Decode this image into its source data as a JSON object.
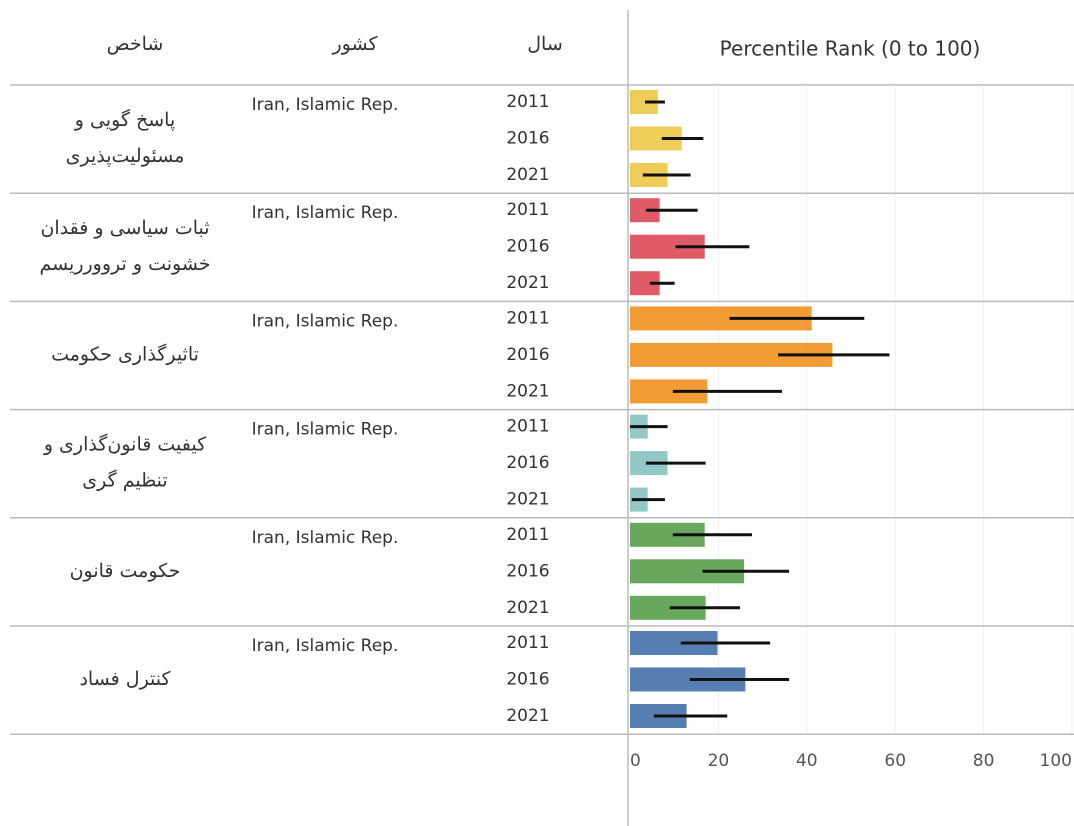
{
  "chart_data": {
    "type": "bar",
    "headers": {
      "indicator": "شاخص",
      "country": "کشور",
      "year": "سال",
      "value_axis": "Percentile Rank (0 to 100)"
    },
    "xlim": [
      0,
      100
    ],
    "xticks": [
      0,
      20,
      40,
      60,
      80,
      100
    ],
    "groups": [
      {
        "label_lines": [
          "پاسخ گویی و",
          "مسئولیت‌پذیری"
        ],
        "country": "Iran, Islamic Rep.",
        "color": "#ebc846",
        "categories": [
          "2011",
          "2016",
          "2021"
        ],
        "values": [
          6.3,
          11.7,
          8.5
        ],
        "lower": [
          3.4,
          7.2,
          2.9
        ],
        "upper": [
          7.9,
          16.6,
          13.7
        ]
      },
      {
        "label_lines": [
          "ثبات سیاسی و فقدان",
          "خشونت و تروورریسم"
        ],
        "country": "Iran, Islamic Rep.",
        "color": "#dc4a55",
        "categories": [
          "2011",
          "2016",
          "2021"
        ],
        "values": [
          6.7,
          16.9,
          6.7
        ],
        "lower": [
          3.6,
          10.3,
          4.5
        ],
        "upper": [
          15.3,
          27,
          10.1
        ]
      },
      {
        "label_lines": [
          "تاثیرگذاری حکومت"
        ],
        "country": "Iran, Islamic Rep.",
        "color": "#f2901f",
        "categories": [
          "2011",
          "2016",
          "2021"
        ],
        "values": [
          41.1,
          45.8,
          17.5
        ],
        "lower": [
          22.5,
          33.5,
          9.7
        ],
        "upper": [
          53,
          58.7,
          34.4
        ]
      },
      {
        "label_lines": [
          "کیفیت قانون‌گذاری و",
          "تنظیم گری"
        ],
        "country": "Iran, Islamic Rep.",
        "color": "#86c2bf",
        "categories": [
          "2011",
          "2016",
          "2021"
        ],
        "values": [
          4,
          8.5,
          4
        ],
        "lower": [
          0,
          3.6,
          0.4
        ],
        "upper": [
          8.5,
          17.1,
          7.9
        ]
      },
      {
        "label_lines": [
          "حکومت قانون"
        ],
        "country": "Iran, Islamic Rep.",
        "color": "#589e4a",
        "categories": [
          "2011",
          "2016",
          "2021"
        ],
        "values": [
          16.9,
          25.8,
          17.1
        ],
        "lower": [
          9.7,
          16.4,
          9
        ],
        "upper": [
          27.6,
          36,
          24.9
        ]
      },
      {
        "label_lines": [
          "کنترل فساد"
        ],
        "country": "Iran, Islamic Rep.",
        "color": "#4570a8",
        "categories": [
          "2011",
          "2016",
          "2021"
        ],
        "values": [
          19.8,
          26.1,
          12.8
        ],
        "lower": [
          11.5,
          13.5,
          5.4
        ],
        "upper": [
          31.7,
          36,
          22
        ]
      }
    ]
  }
}
